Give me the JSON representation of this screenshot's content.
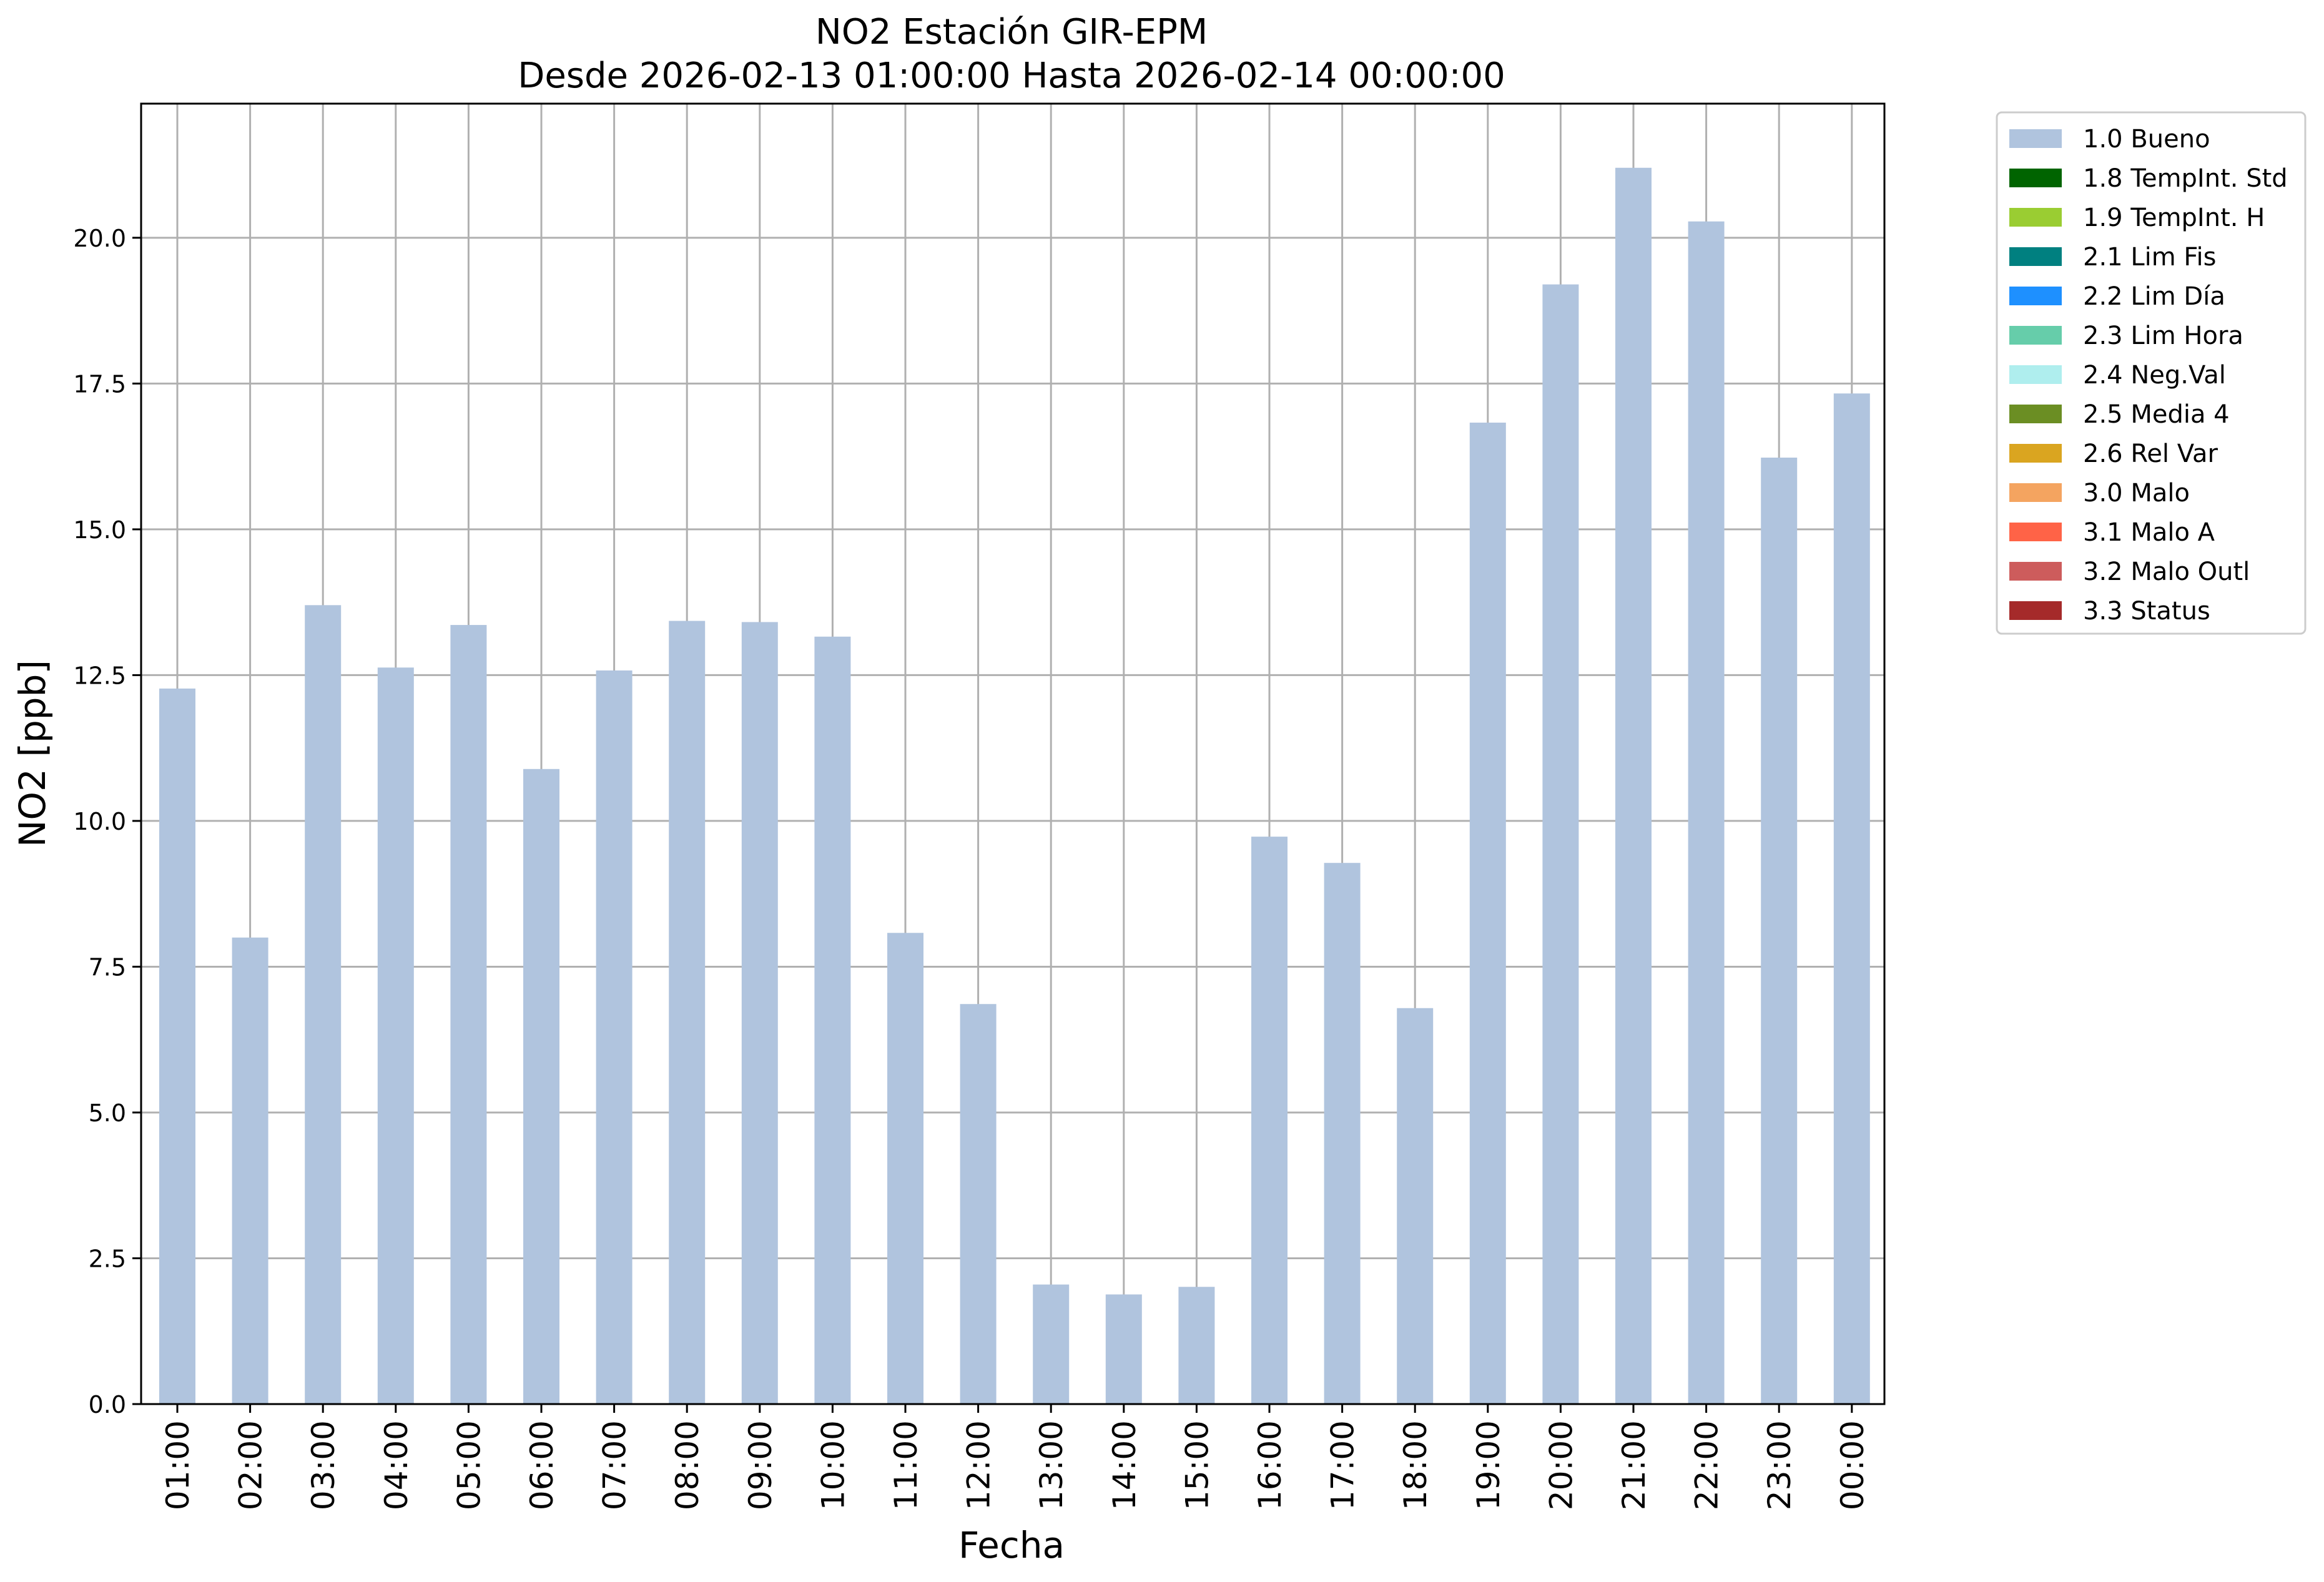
{
  "chart_data": {
    "type": "bar",
    "title": "NO2 Estación GIR-EPM",
    "subtitle": "Desde 2026-02-13 01:00:00 Hasta 2026-02-14 00:00:00",
    "xlabel": "Fecha",
    "ylabel": "NO2 [ppb]",
    "ylim": [
      0,
      22.3
    ],
    "yticks": [
      "0.0",
      "2.5",
      "5.0",
      "7.5",
      "10.0",
      "12.5",
      "15.0",
      "17.5",
      "20.0"
    ],
    "grid": true,
    "legend_position": "outside-top-right",
    "categories": [
      "01:00",
      "02:00",
      "03:00",
      "04:00",
      "05:00",
      "06:00",
      "07:00",
      "08:00",
      "09:00",
      "10:00",
      "11:00",
      "12:00",
      "13:00",
      "14:00",
      "15:00",
      "16:00",
      "17:00",
      "18:00",
      "19:00",
      "20:00",
      "21:00",
      "22:00",
      "23:00",
      "00:00"
    ],
    "series": [
      {
        "name": "1.0 Bueno",
        "color": "#b0c4de",
        "values": [
          12.27,
          8.0,
          13.7,
          12.63,
          13.36,
          10.89,
          12.58,
          13.43,
          13.41,
          13.16,
          8.08,
          6.86,
          2.05,
          1.88,
          2.01,
          9.73,
          9.28,
          6.79,
          16.83,
          19.2,
          21.2,
          20.28,
          16.23,
          17.33
        ]
      }
    ],
    "legend": [
      {
        "label": "1.0 Bueno",
        "color": "#b0c4de"
      },
      {
        "label": "1.8 TempInt. Std",
        "color": "#006400"
      },
      {
        "label": "1.9 TempInt. H",
        "color": "#9acd32"
      },
      {
        "label": "2.1 Lim Fis",
        "color": "#008080"
      },
      {
        "label": "2.2 Lim Día",
        "color": "#1e90ff"
      },
      {
        "label": "2.3 Lim Hora",
        "color": "#66cdaa"
      },
      {
        "label": "2.4 Neg.Val",
        "color": "#afeeee"
      },
      {
        "label": "2.5 Media 4",
        "color": "#6b8e23"
      },
      {
        "label": "2.6 Rel Var",
        "color": "#daa520"
      },
      {
        "label": "3.0 Malo",
        "color": "#f4a460"
      },
      {
        "label": "3.1 Malo A",
        "color": "#ff6347"
      },
      {
        "label": "3.2 Malo Outl",
        "color": "#cd5c5c"
      },
      {
        "label": "3.3 Status",
        "color": "#a52a2a"
      }
    ]
  }
}
